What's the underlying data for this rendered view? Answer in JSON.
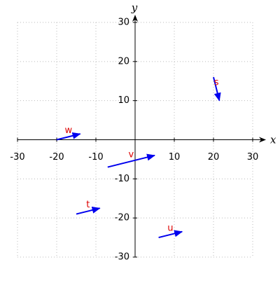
{
  "chart_data": {
    "type": "vector",
    "x_label": "x",
    "y_label": "y",
    "xlim": [
      -30,
      30
    ],
    "ylim": [
      -30,
      30
    ],
    "xticks": [
      -30,
      -20,
      -10,
      10,
      20,
      30
    ],
    "yticks": [
      -30,
      -20,
      -10,
      10,
      20,
      30
    ],
    "grid": true,
    "color": "#0000ee",
    "label_color": "#dd0000",
    "vectors": [
      {
        "name": "w",
        "x": [
          -20,
          -14
        ],
        "y": [
          0,
          1.5
        ]
      },
      {
        "name": "v",
        "x": [
          -7,
          5
        ],
        "y": [
          -7,
          -4
        ]
      },
      {
        "name": "t",
        "x": [
          -15,
          -9
        ],
        "y": [
          -19,
          -17.5
        ]
      },
      {
        "name": "u",
        "x": [
          6,
          12
        ],
        "y": [
          -25,
          -23.5
        ]
      },
      {
        "name": "s",
        "x": [
          20,
          21.5
        ],
        "y": [
          16,
          10
        ]
      }
    ]
  }
}
